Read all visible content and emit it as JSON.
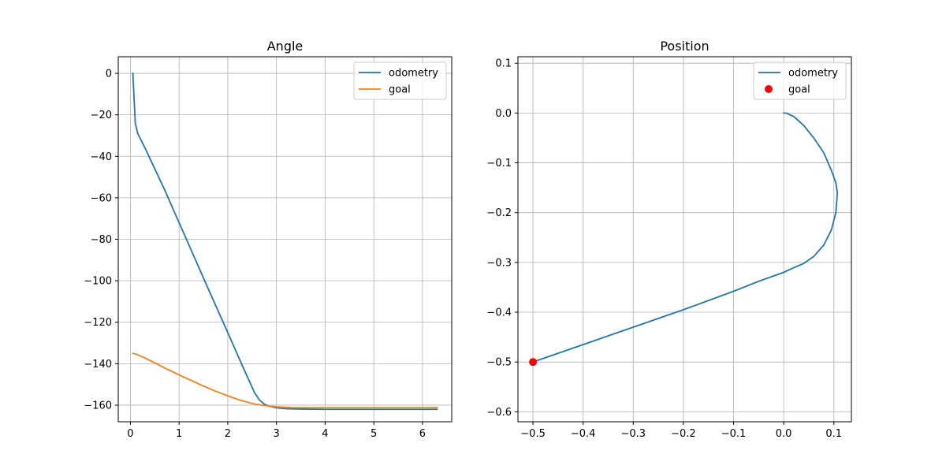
{
  "chart_data": [
    {
      "type": "line",
      "title": "Angle",
      "xlabel": "",
      "ylabel": "",
      "xlim": [
        -0.25,
        6.6
      ],
      "ylim": [
        -168,
        8
      ],
      "x_ticks": [
        0,
        1,
        2,
        3,
        4,
        5,
        6
      ],
      "y_ticks": [
        0,
        -20,
        -40,
        -60,
        -80,
        -100,
        -120,
        -140,
        -160
      ],
      "grid": true,
      "legend": {
        "position": "top-right",
        "entries": [
          "odometry",
          "goal"
        ]
      },
      "series": [
        {
          "name": "odometry",
          "kind": "line",
          "color": "#1f77b4",
          "x": [
            0.05,
            0.1,
            0.15,
            0.3,
            0.5,
            0.7,
            1.0,
            1.3,
            1.6,
            2.0,
            2.3,
            2.55,
            2.65,
            2.75,
            2.85,
            3.0,
            3.2,
            3.5,
            4.0,
            5.0,
            6.3
          ],
          "y": [
            0,
            -24,
            -29,
            -36,
            -46,
            -56,
            -72,
            -88,
            -104,
            -125,
            -141,
            -154,
            -157.5,
            -159.5,
            -160.5,
            -161.3,
            -161.7,
            -161.9,
            -162,
            -162,
            -162
          ]
        },
        {
          "name": "goal",
          "kind": "line",
          "color": "#ff7f0e",
          "x": [
            0.05,
            0.15,
            0.3,
            0.5,
            0.75,
            1.0,
            1.25,
            1.5,
            1.75,
            2.0,
            2.25,
            2.5,
            2.75,
            3.0,
            3.3,
            3.7,
            4.5,
            6.3
          ],
          "y": [
            -135,
            -135.7,
            -137.3,
            -139.6,
            -142.6,
            -145.4,
            -148.1,
            -150.8,
            -153.3,
            -155.5,
            -157.6,
            -159.2,
            -160.2,
            -160.8,
            -161.1,
            -161.2,
            -161.2,
            -161.2
          ]
        }
      ]
    },
    {
      "type": "line",
      "title": "Position",
      "xlabel": "",
      "ylabel": "",
      "xlim": [
        -0.53,
        0.135
      ],
      "ylim": [
        -0.62,
        0.113
      ],
      "x_ticks": [
        -0.5,
        -0.4,
        -0.3,
        -0.2,
        -0.1,
        0.0,
        0.1
      ],
      "y_ticks": [
        0.1,
        0.0,
        -0.1,
        -0.2,
        -0.3,
        -0.4,
        -0.5,
        -0.6
      ],
      "grid": true,
      "legend": {
        "position": "top-right",
        "entries": [
          "odometry",
          "goal"
        ]
      },
      "series": [
        {
          "name": "odometry",
          "kind": "line",
          "color": "#1f77b4",
          "x": [
            0.0,
            0.005,
            0.02,
            0.04,
            0.06,
            0.08,
            0.095,
            0.104,
            0.107,
            0.104,
            0.095,
            0.08,
            0.06,
            0.04,
            0.015,
            0.0,
            -0.05,
            -0.1,
            -0.2,
            -0.3,
            -0.4,
            -0.5
          ],
          "y": [
            0.0,
            0.0,
            -0.007,
            -0.025,
            -0.05,
            -0.08,
            -0.115,
            -0.14,
            -0.16,
            -0.2,
            -0.235,
            -0.265,
            -0.288,
            -0.302,
            -0.313,
            -0.32,
            -0.338,
            -0.358,
            -0.395,
            -0.43,
            -0.465,
            -0.5
          ]
        },
        {
          "name": "goal",
          "kind": "scatter",
          "color": "#ff0000",
          "x": [
            -0.5
          ],
          "y": [
            -0.5
          ]
        }
      ]
    }
  ]
}
